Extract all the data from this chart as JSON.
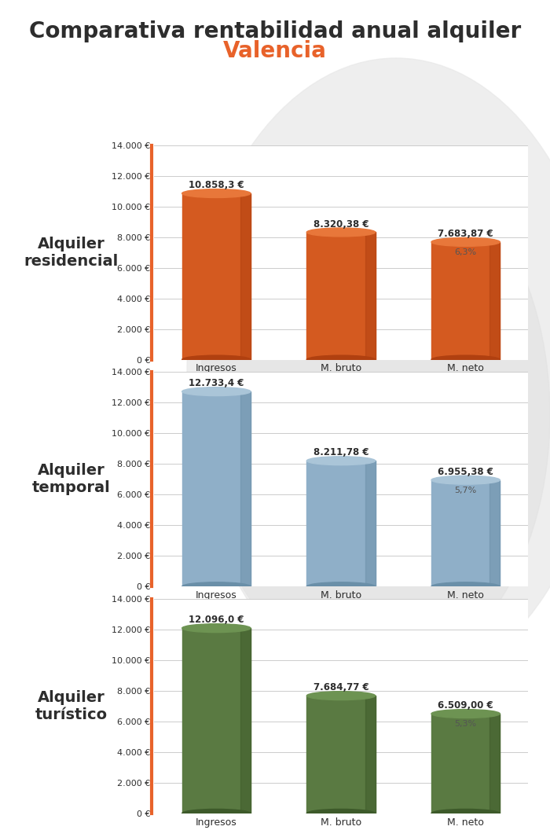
{
  "title": "Comparativa rentabilidad anual alquiler",
  "subtitle": "Valencia",
  "title_color": "#2d2d2d",
  "subtitle_color": "#e8622a",
  "background_color": "#ffffff",
  "chart_bg_color": "#f0f0f0",
  "sections": [
    {
      "label": "Alquiler\nresidencial",
      "color_main": "#d45a20",
      "color_top": "#e8773a",
      "color_dark": "#b04010",
      "values": [
        10858.3,
        8320.38,
        7683.87
      ],
      "pct": null,
      "pct3": "6,3%",
      "categories": [
        "Ingresos",
        "M. bruto",
        "M. neto"
      ],
      "value_labels": [
        "10.858,3 €",
        "8.320,38 €",
        "7.683,87 €"
      ]
    },
    {
      "label": "Alquiler\ntemporal",
      "color_main": "#8fafc8",
      "color_top": "#aac5d8",
      "color_dark": "#6a8fa8",
      "values": [
        12733.4,
        8211.78,
        6955.38
      ],
      "pct": null,
      "pct3": "5,7%",
      "categories": [
        "Ingresos",
        "M. bruto",
        "M. neto"
      ],
      "value_labels": [
        "12.733,4 €",
        "8.211,78 €",
        "6.955,38 €"
      ]
    },
    {
      "label": "Alquiler\nturístico",
      "color_main": "#5a7a42",
      "color_top": "#6d9352",
      "color_dark": "#3d5a2a",
      "values": [
        12096.0,
        7684.77,
        6509.0
      ],
      "pct": null,
      "pct3": "5,3%",
      "categories": [
        "Ingresos",
        "M. bruto",
        "M. neto"
      ],
      "value_labels": [
        "12.096,0 €",
        "7.684,77 €",
        "6.509,00 €"
      ]
    }
  ],
  "ylim": [
    0,
    14000
  ],
  "yticks": [
    0,
    2000,
    4000,
    6000,
    8000,
    10000,
    12000,
    14000
  ],
  "ytick_labels": [
    "0 €",
    "2.000 €",
    "4.000 €",
    "6.000 €",
    "8.000 €",
    "10.000 €",
    "12.000 €",
    "14.000 €"
  ]
}
